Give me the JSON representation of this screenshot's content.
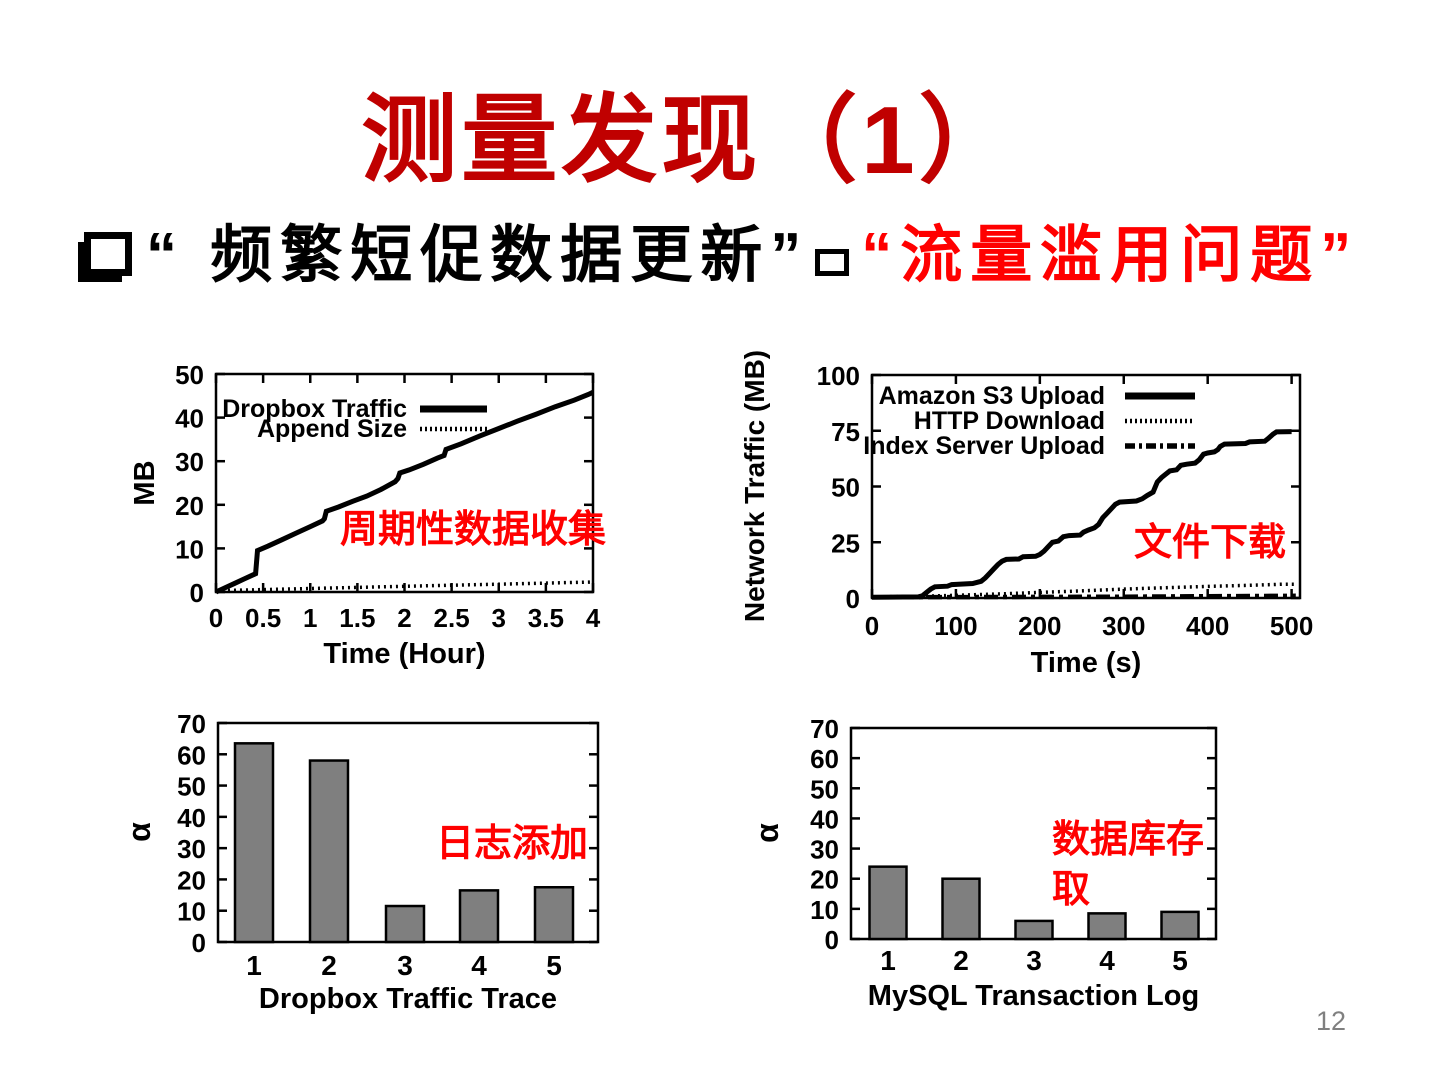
{
  "slide": {
    "title": "测量发现（1）",
    "page_number": "12"
  },
  "bullet": {
    "text_black": "“ 频繁短促数据更新”",
    "text_red": "“流量滥用问题”"
  },
  "colors": {
    "title_red": "#c00000",
    "annotation_red": "#ff0000",
    "bar_fill": "#7f7f7f",
    "axis_black": "#000000",
    "page_number_gray": "#808080"
  },
  "chart_data": [
    {
      "id": "dropbox-traffic-line",
      "type": "line",
      "title": "",
      "xlabel": "Time (Hour)",
      "ylabel": "MB",
      "xlim": [
        0,
        4
      ],
      "ylim": [
        0,
        50
      ],
      "xticks": [
        "0",
        "0.5",
        "1",
        "1.5",
        "2",
        "2.5",
        "3",
        "3.5",
        "4"
      ],
      "yticks": [
        "0",
        "10",
        "20",
        "30",
        "40",
        "50"
      ],
      "grid": false,
      "legend_position": "top-left-inside",
      "annotation": {
        "lines": [
          "周期性数据收集"
        ]
      },
      "series": [
        {
          "name": "Dropbox Traffic",
          "style": "solid",
          "points": [
            [
              0,
              0
            ],
            [
              0.1,
              1
            ],
            [
              0.2,
              2
            ],
            [
              0.3,
              3
            ],
            [
              0.42,
              4.2
            ],
            [
              0.44,
              9.5
            ],
            [
              0.55,
              10.5
            ],
            [
              0.7,
              12
            ],
            [
              0.85,
              13.5
            ],
            [
              1.0,
              15
            ],
            [
              1.13,
              16.3
            ],
            [
              1.15,
              16.8
            ],
            [
              1.17,
              18.5
            ],
            [
              1.3,
              19.5
            ],
            [
              1.45,
              20.8
            ],
            [
              1.6,
              22
            ],
            [
              1.75,
              23.5
            ],
            [
              1.9,
              25.3
            ],
            [
              1.93,
              26
            ],
            [
              1.95,
              27.3
            ],
            [
              2.05,
              28
            ],
            [
              2.2,
              29.3
            ],
            [
              2.35,
              30.7
            ],
            [
              2.42,
              31.3
            ],
            [
              2.44,
              32.7
            ],
            [
              2.6,
              34
            ],
            [
              2.8,
              35.8
            ],
            [
              3.0,
              37.5
            ],
            [
              3.2,
              39.2
            ],
            [
              3.4,
              40.8
            ],
            [
              3.6,
              42.5
            ],
            [
              3.8,
              44
            ],
            [
              3.95,
              45.3
            ],
            [
              4.0,
              45.8
            ]
          ]
        },
        {
          "name": "Append Size",
          "style": "dotted",
          "points": [
            [
              0,
              0.3
            ],
            [
              0.5,
              0.55
            ],
            [
              1,
              0.8
            ],
            [
              1.5,
              1.05
            ],
            [
              2,
              1.3
            ],
            [
              2.5,
              1.55
            ],
            [
              3,
              1.8
            ],
            [
              3.5,
              2.05
            ],
            [
              4,
              2.3
            ]
          ]
        }
      ]
    },
    {
      "id": "network-traffic-line",
      "type": "line",
      "title": "",
      "xlabel": "Time (s)",
      "ylabel": "Network Traffic (MB)",
      "xlim": [
        0,
        510
      ],
      "ylim": [
        0,
        100
      ],
      "xticks": [
        "0",
        "100",
        "200",
        "300",
        "400",
        "500"
      ],
      "yticks": [
        "0",
        "25",
        "50",
        "75",
        "100"
      ],
      "grid": false,
      "legend_position": "top-left-inside",
      "annotation": {
        "lines": [
          "文件下载"
        ]
      },
      "series": [
        {
          "name": "Amazon S3 Upload",
          "style": "solid",
          "points": [
            [
              0,
              0.3
            ],
            [
              55,
              0.5
            ],
            [
              60,
              1
            ],
            [
              65,
              2.5
            ],
            [
              70,
              4
            ],
            [
              75,
              5
            ],
            [
              90,
              5.3
            ],
            [
              95,
              6
            ],
            [
              120,
              6.5
            ],
            [
              130,
              7.5
            ],
            [
              135,
              9
            ],
            [
              140,
              11
            ],
            [
              145,
              13
            ],
            [
              150,
              15
            ],
            [
              155,
              16.5
            ],
            [
              160,
              17.3
            ],
            [
              175,
              17.5
            ],
            [
              180,
              18.5
            ],
            [
              195,
              18.7
            ],
            [
              200,
              19.5
            ],
            [
              205,
              21
            ],
            [
              210,
              23
            ],
            [
              215,
              25
            ],
            [
              222,
              25.5
            ],
            [
              228,
              27.5
            ],
            [
              235,
              28
            ],
            [
              248,
              28.2
            ],
            [
              252,
              29.5
            ],
            [
              258,
              30.5
            ],
            [
              265,
              31.5
            ],
            [
              270,
              33
            ],
            [
              275,
              36
            ],
            [
              280,
              38
            ],
            [
              285,
              40
            ],
            [
              290,
              42
            ],
            [
              295,
              43
            ],
            [
              315,
              43.5
            ],
            [
              322,
              44.5
            ],
            [
              328,
              46
            ],
            [
              335,
              47.5
            ],
            [
              340,
              52
            ],
            [
              345,
              54
            ],
            [
              350,
              55.5
            ],
            [
              355,
              57
            ],
            [
              363,
              57.5
            ],
            [
              368,
              59.5
            ],
            [
              375,
              60
            ],
            [
              385,
              60.5
            ],
            [
              390,
              62
            ],
            [
              395,
              64.5
            ],
            [
              400,
              65
            ],
            [
              408,
              65.5
            ],
            [
              412,
              66.5
            ],
            [
              415,
              68
            ],
            [
              420,
              69
            ],
            [
              445,
              69.3
            ],
            [
              450,
              70
            ],
            [
              468,
              70.3
            ],
            [
              472,
              71.5
            ],
            [
              478,
              73.5
            ],
            [
              482,
              74.5
            ],
            [
              500,
              74.6
            ]
          ]
        },
        {
          "name": "HTTP Download",
          "style": "dotted",
          "points": [
            [
              0,
              0.5
            ],
            [
              60,
              0.8
            ],
            [
              100,
              1.2
            ],
            [
              150,
              1.8
            ],
            [
              200,
              2.5
            ],
            [
              250,
              3.2
            ],
            [
              300,
              4
            ],
            [
              350,
              4.6
            ],
            [
              400,
              5.2
            ],
            [
              450,
              5.7
            ],
            [
              490,
              6.2
            ],
            [
              505,
              6.2
            ]
          ]
        },
        {
          "name": "Index Server Upload",
          "style": "dashdot",
          "points": [
            [
              0,
              0.3
            ],
            [
              100,
              0.4
            ],
            [
              200,
              0.5
            ],
            [
              300,
              0.6
            ],
            [
              400,
              0.8
            ],
            [
              505,
              1
            ]
          ]
        }
      ]
    },
    {
      "id": "dropbox-trace-bars",
      "type": "bar",
      "title": "",
      "xlabel": "Dropbox Traffic Trace",
      "ylabel": "α",
      "ylim": [
        0,
        70
      ],
      "yticks": [
        "0",
        "10",
        "20",
        "30",
        "40",
        "50",
        "60",
        "70"
      ],
      "categories": [
        "1",
        "2",
        "3",
        "4",
        "5"
      ],
      "values": [
        63.5,
        58,
        11.5,
        16.5,
        17.5
      ],
      "grid": false,
      "annotation": {
        "lines": [
          "日志添加"
        ]
      }
    },
    {
      "id": "mysql-log-bars",
      "type": "bar",
      "title": "",
      "xlabel": "MySQL Transaction Log",
      "ylabel": "α",
      "ylim": [
        0,
        70
      ],
      "yticks": [
        "0",
        "10",
        "20",
        "30",
        "40",
        "50",
        "60",
        "70"
      ],
      "categories": [
        "1",
        "2",
        "3",
        "4",
        "5"
      ],
      "values": [
        24,
        20,
        6,
        8.5,
        9
      ],
      "grid": false,
      "annotation": {
        "lines": [
          "数据库存",
          "取"
        ]
      }
    }
  ]
}
